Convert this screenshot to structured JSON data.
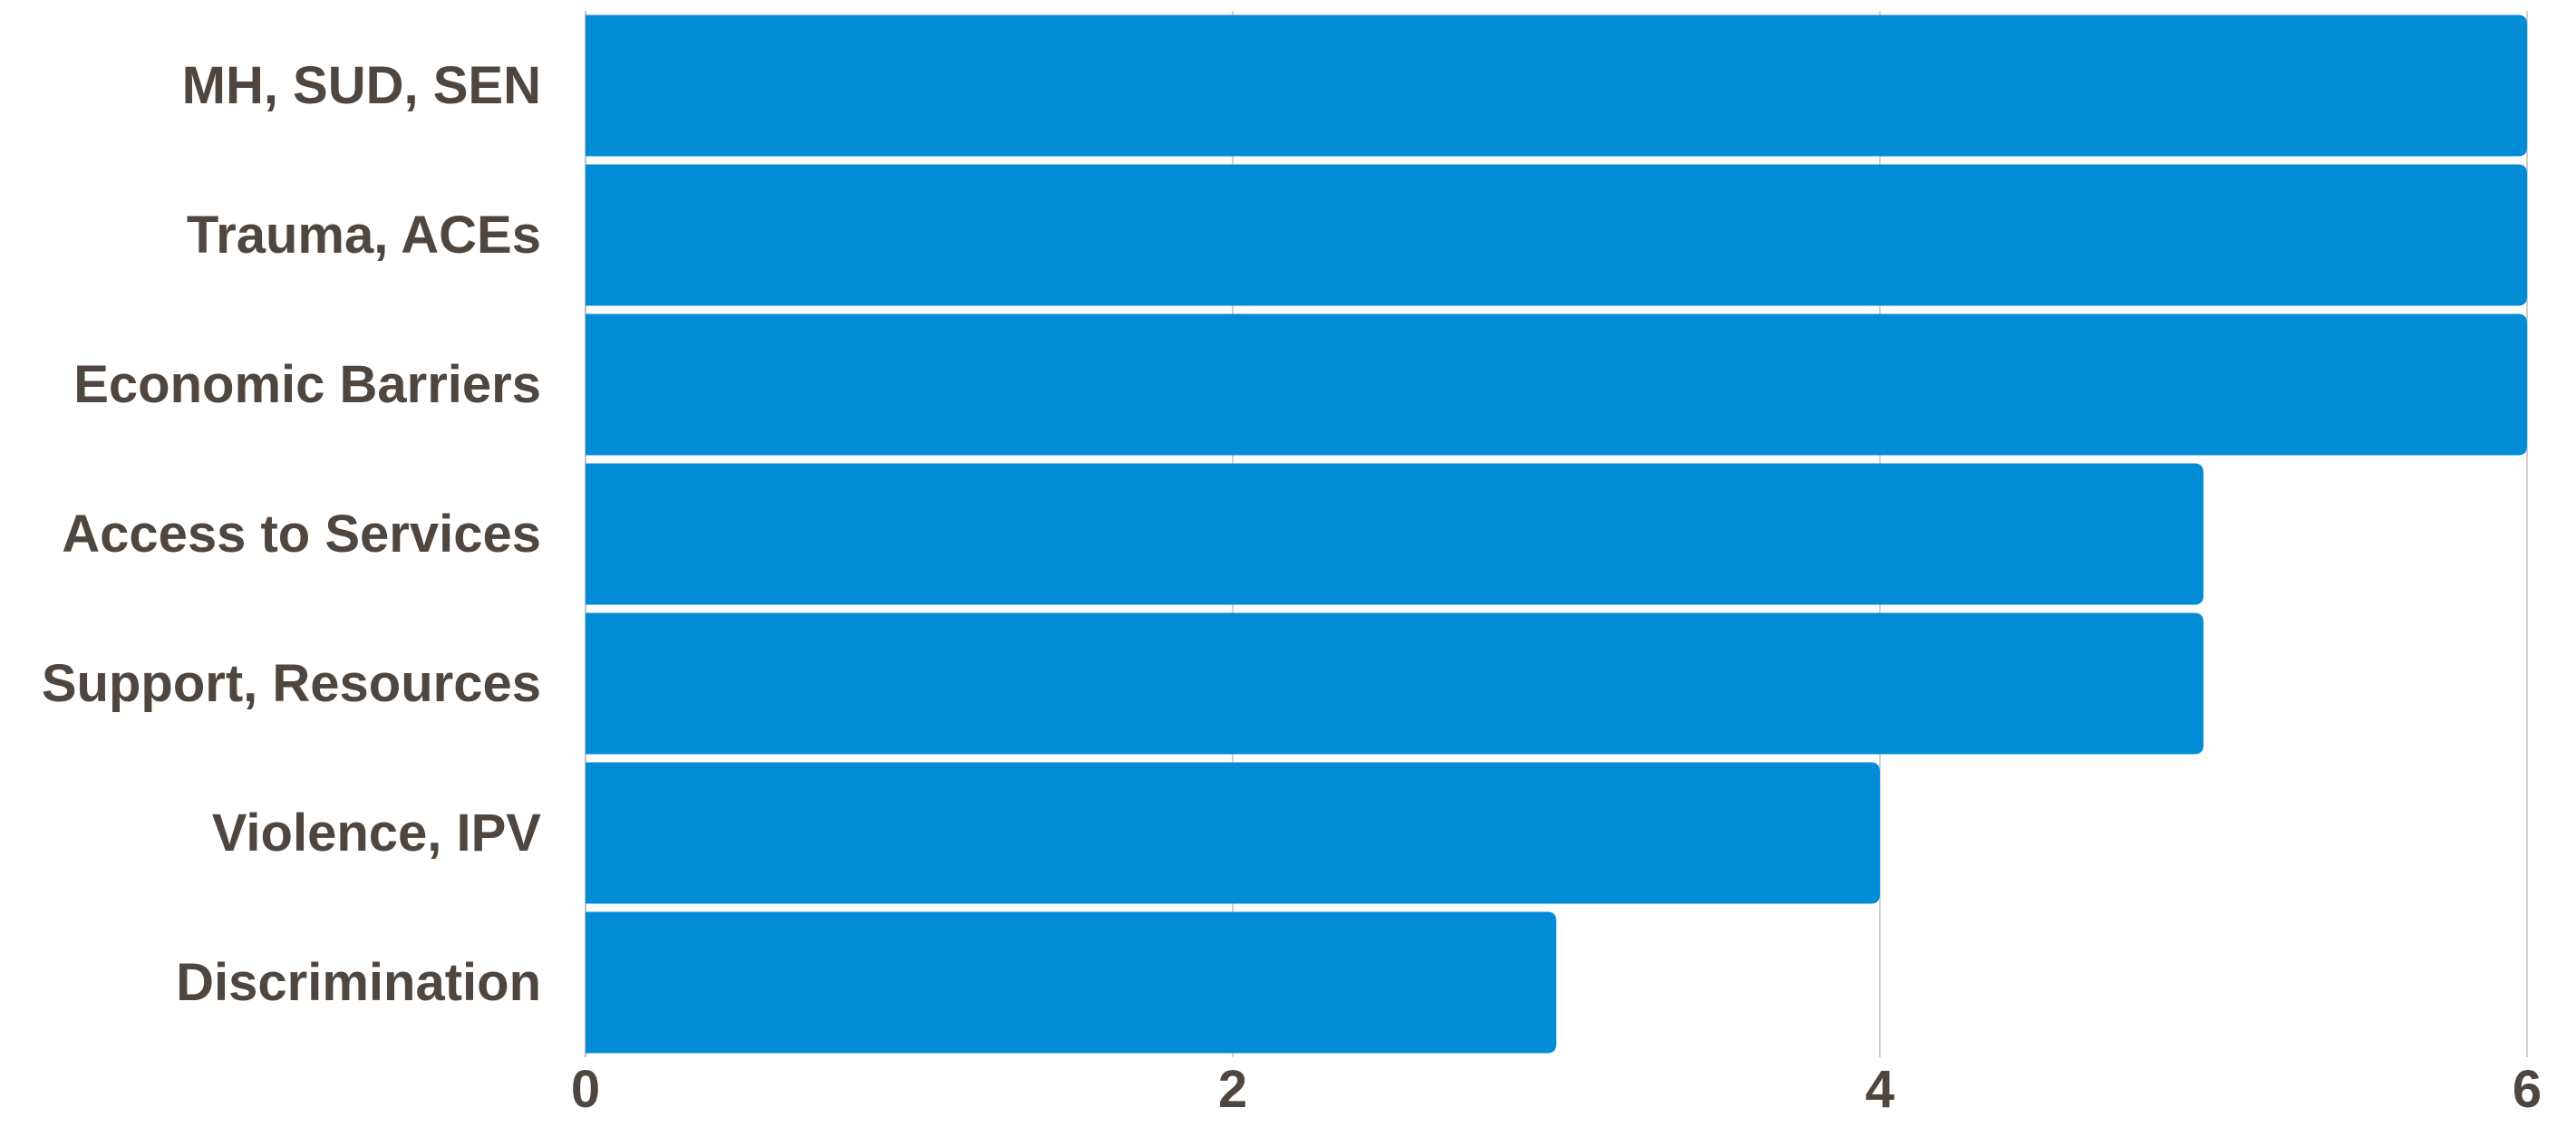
{
  "chart_data": {
    "type": "bar",
    "orientation": "horizontal",
    "categories": [
      "MH, SUD, SEN",
      "Trauma, ACEs",
      "Economic Barriers",
      "Access to Services",
      "Support, Resources",
      "Violence, IPV",
      "Discrimination"
    ],
    "values": [
      6,
      6,
      6,
      5,
      5,
      4,
      3
    ],
    "xlim": [
      0,
      6
    ],
    "xticks": [
      0,
      2,
      4,
      6
    ],
    "grid": "vertical",
    "bar_color": "#038cd6",
    "text_color": "#4f463f",
    "legend": "none"
  }
}
